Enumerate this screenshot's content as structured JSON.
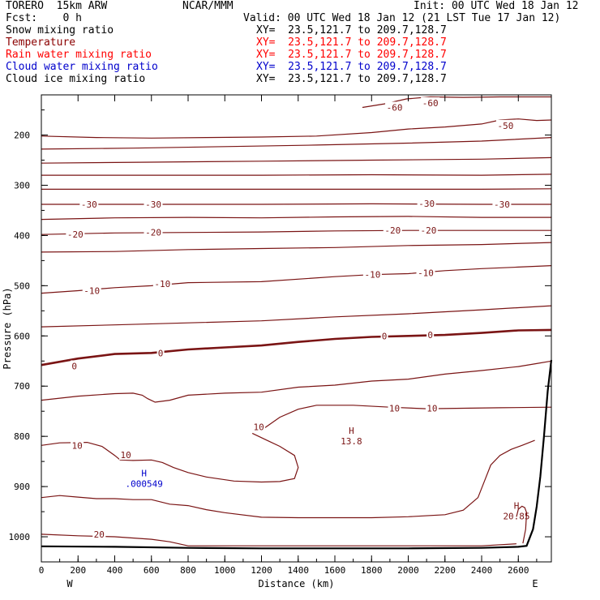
{
  "header": {
    "model": "TORERO  15km ARW",
    "center": "NCAR/MMM",
    "init": "Init: 00 UTC Wed 18 Jan 12",
    "fcst": "Fcst:    0 h",
    "valid": "Valid: 00 UTC Wed 18 Jan 12 (21 LST Tue 17 Jan 12)"
  },
  "fields": [
    {
      "name": "Snow mixing ratio",
      "xy": "XY=  23.5,121.7 to 209.7,128.7",
      "color": "#000000"
    },
    {
      "name": "Temperature",
      "xy": "XY=  23.5,121.7 to 209.7,128.7",
      "color": "#8b0000"
    },
    {
      "name": "Rain water mixing ratio",
      "xy": "XY=  23.5,121.7 to 209.7,128.7",
      "color": "#ff0000"
    },
    {
      "name": "Cloud water mixing ratio",
      "xy": "XY=  23.5,121.7 to 209.7,128.7",
      "color": "#0000cc"
    },
    {
      "name": "Cloud ice mixing ratio",
      "xy": "XY=  23.5,121.7 to 209.7,128.7",
      "color": "#000000"
    }
  ],
  "chart_data": {
    "type": "contour cross-section",
    "xlabel": "Distance (km)",
    "ylabel": "Pressure (hPa)",
    "xlim": [
      0,
      2780
    ],
    "ylim": [
      1050,
      120
    ],
    "x_ticks": [
      "0",
      "200",
      "400",
      "600",
      "800",
      "1000",
      "1200",
      "1400",
      "1600",
      "1800",
      "2000",
      "2200",
      "2400",
      "2600"
    ],
    "y_ticks": [
      "200",
      "300",
      "400",
      "500",
      "600",
      "700",
      "800",
      "900",
      "1000"
    ],
    "x_end_labels": {
      "left": "W",
      "right": "E"
    },
    "colors": {
      "temperature": "#7a1414",
      "cloud_water": "#0000cc",
      "terrain": "#000000"
    },
    "contour_labels": [
      {
        "text": "-60",
        "x": 1925,
        "y": 145
      },
      {
        "text": "-60",
        "x": 2120,
        "y": 136
      },
      {
        "text": "-50",
        "x": 2530,
        "y": 181
      },
      {
        "text": "-30",
        "x": 260,
        "y": 338
      },
      {
        "text": "-30",
        "x": 610,
        "y": 338
      },
      {
        "text": "-30",
        "x": 2100,
        "y": 336
      },
      {
        "text": "-30",
        "x": 2510,
        "y": 338
      },
      {
        "text": "-20",
        "x": 185,
        "y": 398
      },
      {
        "text": "-20",
        "x": 610,
        "y": 394
      },
      {
        "text": "-20",
        "x": 1915,
        "y": 390
      },
      {
        "text": "-20",
        "x": 2110,
        "y": 390
      },
      {
        "text": "-10",
        "x": 275,
        "y": 510
      },
      {
        "text": "-10",
        "x": 660,
        "y": 496
      },
      {
        "text": "-10",
        "x": 1805,
        "y": 478
      },
      {
        "text": "-10",
        "x": 2095,
        "y": 474
      },
      {
        "text": "0",
        "x": 180,
        "y": 660
      },
      {
        "text": "0",
        "x": 650,
        "y": 634
      },
      {
        "text": "0",
        "x": 1870,
        "y": 600
      },
      {
        "text": "0",
        "x": 2120,
        "y": 598
      },
      {
        "text": "10",
        "x": 1925,
        "y": 744
      },
      {
        "text": "10",
        "x": 2130,
        "y": 744
      },
      {
        "text": "10",
        "x": 1185,
        "y": 781
      },
      {
        "text": "10",
        "x": 195,
        "y": 818
      },
      {
        "text": "10",
        "x": 460,
        "y": 837
      },
      {
        "text": "20",
        "x": 315,
        "y": 995
      }
    ],
    "extrema": [
      {
        "marker": "H",
        "value": "13.8",
        "x": 1690,
        "y": 795,
        "field": "temperature"
      },
      {
        "marker": "H",
        "value": ".000549",
        "x": 560,
        "y": 880,
        "field": "cloud_water"
      },
      {
        "marker": "H",
        "value": "20.85",
        "x": 2590,
        "y": 944,
        "field": "temperature"
      }
    ],
    "isotherms": [
      {
        "value": -60,
        "points": [
          [
            1750,
            145
          ],
          [
            1870,
            138
          ],
          [
            1990,
            128
          ],
          [
            2120,
            124
          ],
          [
            2300,
            125
          ],
          [
            2500,
            124
          ],
          [
            2780,
            124
          ]
        ]
      },
      {
        "value": -55,
        "points": [
          [
            0,
            202
          ],
          [
            300,
            205
          ],
          [
            600,
            206
          ],
          [
            900,
            205
          ],
          [
            1200,
            204
          ],
          [
            1500,
            202
          ],
          [
            1800,
            195
          ],
          [
            2000,
            188
          ],
          [
            2200,
            184
          ],
          [
            2400,
            178
          ],
          [
            2500,
            170
          ],
          [
            2600,
            168
          ],
          [
            2700,
            171
          ],
          [
            2780,
            170
          ]
        ]
      },
      {
        "value": -50,
        "points": [
          [
            0,
            228
          ],
          [
            500,
            226
          ],
          [
            1000,
            223
          ],
          [
            1500,
            220
          ],
          [
            2000,
            216
          ],
          [
            2400,
            212
          ],
          [
            2780,
            205
          ]
        ]
      },
      {
        "value": -45,
        "points": [
          [
            0,
            256
          ],
          [
            600,
            254
          ],
          [
            1200,
            252
          ],
          [
            1800,
            250
          ],
          [
            2400,
            248
          ],
          [
            2780,
            245
          ]
        ]
      },
      {
        "value": -40,
        "points": [
          [
            0,
            280
          ],
          [
            600,
            280
          ],
          [
            1200,
            280
          ],
          [
            1800,
            279
          ],
          [
            2400,
            280
          ],
          [
            2780,
            278
          ]
        ]
      },
      {
        "value": -35,
        "points": [
          [
            0,
            308
          ],
          [
            600,
            308
          ],
          [
            1200,
            308
          ],
          [
            1800,
            308
          ],
          [
            2400,
            308
          ],
          [
            2780,
            307
          ]
        ]
      },
      {
        "value": -30,
        "points": [
          [
            0,
            338
          ],
          [
            600,
            338
          ],
          [
            1200,
            338
          ],
          [
            1800,
            337
          ],
          [
            2400,
            338
          ],
          [
            2780,
            338
          ]
        ]
      },
      {
        "value": -25,
        "points": [
          [
            0,
            368
          ],
          [
            400,
            365
          ],
          [
            800,
            364
          ],
          [
            1200,
            365
          ],
          [
            1600,
            363
          ],
          [
            2000,
            362
          ],
          [
            2400,
            364
          ],
          [
            2780,
            364
          ]
        ]
      },
      {
        "value": -20,
        "points": [
          [
            0,
            398
          ],
          [
            400,
            395
          ],
          [
            800,
            394
          ],
          [
            1200,
            393
          ],
          [
            1600,
            391
          ],
          [
            2000,
            390
          ],
          [
            2400,
            390
          ],
          [
            2780,
            390
          ]
        ]
      },
      {
        "value": -15,
        "points": [
          [
            0,
            433
          ],
          [
            400,
            432
          ],
          [
            800,
            428
          ],
          [
            1200,
            426
          ],
          [
            1600,
            424
          ],
          [
            2000,
            420
          ],
          [
            2400,
            418
          ],
          [
            2780,
            414
          ]
        ]
      },
      {
        "value": -10,
        "points": [
          [
            0,
            515
          ],
          [
            200,
            510
          ],
          [
            400,
            504
          ],
          [
            600,
            500
          ],
          [
            800,
            494
          ],
          [
            1200,
            492
          ],
          [
            1600,
            482
          ],
          [
            1800,
            478
          ],
          [
            2000,
            476
          ],
          [
            2200,
            470
          ],
          [
            2400,
            466
          ],
          [
            2600,
            463
          ],
          [
            2780,
            460
          ]
        ]
      },
      {
        "value": -5,
        "points": [
          [
            0,
            582
          ],
          [
            400,
            578
          ],
          [
            800,
            574
          ],
          [
            1200,
            570
          ],
          [
            1600,
            562
          ],
          [
            2000,
            556
          ],
          [
            2400,
            548
          ],
          [
            2780,
            540
          ]
        ]
      },
      {
        "value": 0,
        "points": [
          [
            0,
            658
          ],
          [
            200,
            645
          ],
          [
            400,
            636
          ],
          [
            600,
            634
          ],
          [
            800,
            627
          ],
          [
            1000,
            623
          ],
          [
            1200,
            619
          ],
          [
            1400,
            612
          ],
          [
            1600,
            606
          ],
          [
            1800,
            602
          ],
          [
            2000,
            600
          ],
          [
            2200,
            598
          ],
          [
            2400,
            594
          ],
          [
            2600,
            589
          ],
          [
            2780,
            588
          ]
        ]
      },
      {
        "value": 5,
        "points": [
          [
            0,
            728
          ],
          [
            200,
            720
          ],
          [
            400,
            715
          ],
          [
            500,
            714
          ],
          [
            550,
            718
          ],
          [
            580,
            725
          ],
          [
            620,
            732
          ],
          [
            700,
            728
          ],
          [
            800,
            718
          ],
          [
            1000,
            714
          ],
          [
            1200,
            712
          ],
          [
            1400,
            702
          ],
          [
            1600,
            698
          ],
          [
            1800,
            690
          ],
          [
            2000,
            686
          ],
          [
            2200,
            676
          ],
          [
            2400,
            669
          ],
          [
            2600,
            661
          ],
          [
            2700,
            655
          ],
          [
            2780,
            650
          ]
        ]
      },
      {
        "value": 10,
        "points": [
          [
            1210,
            785
          ],
          [
            1300,
            762
          ],
          [
            1400,
            746
          ],
          [
            1500,
            738
          ],
          [
            1700,
            738
          ],
          [
            1900,
            742
          ],
          [
            2100,
            745
          ],
          [
            2300,
            744
          ],
          [
            2500,
            743
          ],
          [
            2780,
            742
          ]
        ]
      },
      {
        "value": 10.1,
        "points": [
          [
            1150,
            794
          ],
          [
            1230,
            808
          ],
          [
            1300,
            820
          ],
          [
            1380,
            838
          ],
          [
            1400,
            862
          ],
          [
            1380,
            884
          ],
          [
            1300,
            890
          ],
          [
            1200,
            891
          ],
          [
            1050,
            889
          ],
          [
            900,
            881
          ],
          [
            800,
            872
          ],
          [
            720,
            862
          ],
          [
            660,
            852
          ],
          [
            600,
            847
          ],
          [
            500,
            848
          ],
          [
            430,
            847
          ],
          [
            400,
            838
          ],
          [
            330,
            820
          ],
          [
            250,
            812
          ],
          [
            100,
            813
          ],
          [
            0,
            818
          ]
        ]
      },
      {
        "value": 15,
        "points": [
          [
            0,
            922
          ],
          [
            100,
            918
          ],
          [
            200,
            921
          ],
          [
            300,
            924
          ],
          [
            400,
            924
          ],
          [
            500,
            926
          ],
          [
            600,
            926
          ],
          [
            700,
            935
          ],
          [
            800,
            938
          ],
          [
            900,
            946
          ],
          [
            1000,
            952
          ],
          [
            1200,
            961
          ],
          [
            1400,
            962
          ],
          [
            1600,
            962
          ],
          [
            1800,
            962
          ],
          [
            2000,
            960
          ],
          [
            2200,
            956
          ],
          [
            2300,
            947
          ],
          [
            2380,
            922
          ],
          [
            2420,
            885
          ],
          [
            2450,
            857
          ],
          [
            2500,
            838
          ],
          [
            2560,
            826
          ],
          [
            2620,
            818
          ],
          [
            2690,
            808
          ]
        ]
      },
      {
        "value": 20,
        "points": [
          [
            0,
            995
          ],
          [
            200,
            998
          ],
          [
            400,
            1000
          ],
          [
            600,
            1005
          ],
          [
            700,
            1010
          ],
          [
            800,
            1018
          ],
          [
            1000,
            1018
          ],
          [
            1400,
            1018
          ],
          [
            1800,
            1018
          ],
          [
            2400,
            1018
          ],
          [
            2590,
            1014
          ]
        ]
      },
      {
        "value": 20.5,
        "points": [
          [
            2590,
            960
          ],
          [
            2600,
            945
          ],
          [
            2620,
            939
          ],
          [
            2635,
            942
          ],
          [
            2645,
            952
          ],
          [
            2640,
            985
          ],
          [
            2625,
            1013
          ]
        ]
      }
    ],
    "terrain": [
      [
        0,
        1019
      ],
      [
        400,
        1020
      ],
      [
        800,
        1022
      ],
      [
        1200,
        1023
      ],
      [
        1600,
        1023
      ],
      [
        2000,
        1023
      ],
      [
        2400,
        1022
      ],
      [
        2600,
        1020
      ],
      [
        2645,
        1018
      ],
      [
        2680,
        985
      ],
      [
        2700,
        940
      ],
      [
        2720,
        880
      ],
      [
        2740,
        800
      ],
      [
        2760,
        710
      ],
      [
        2780,
        648
      ]
    ]
  }
}
